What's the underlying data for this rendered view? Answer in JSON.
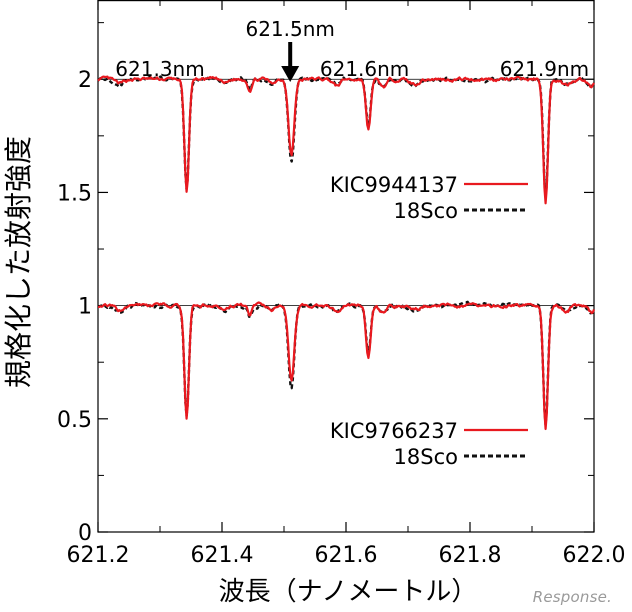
{
  "chart_data": {
    "type": "line",
    "title": "",
    "xlabel": "波長（ナノメートル）",
    "ylabel": "規格化した放射強度",
    "xlim": [
      621.2,
      622.0
    ],
    "ylim": [
      0,
      2.35
    ],
    "xticks": [
      621.2,
      621.4,
      621.6,
      621.8,
      622.0
    ],
    "xtick_labels": [
      "621.2",
      "621.4",
      "621.6",
      "621.8",
      "622.0"
    ],
    "yticks": [
      0,
      0.5,
      1,
      1.5,
      2
    ],
    "ytick_labels": [
      "0",
      "0.5",
      "1",
      "1.5",
      "2"
    ],
    "reference_lines": [
      1,
      2
    ],
    "line_annotations": [
      {
        "label": "621.3nm",
        "x": 621.3
      },
      {
        "label": "621.5nm",
        "x": 621.51,
        "arrow": true
      },
      {
        "label": "621.6nm",
        "x": 621.63
      },
      {
        "label": "621.9nm",
        "x": 621.92
      }
    ],
    "absorption_lines": [
      {
        "center": 621.343,
        "width": 0.0052,
        "red_min": 1.5,
        "black_min": 1.52
      },
      {
        "center": 621.512,
        "width": 0.0065,
        "red_min": 1.67,
        "black_min": 1.63
      },
      {
        "center": 621.636,
        "width": 0.0052,
        "red_min": 1.77,
        "black_min": 1.79
      },
      {
        "center": 621.922,
        "width": 0.0052,
        "red_min": 1.45,
        "black_min": 1.47
      }
    ],
    "series_groups": [
      {
        "offset": 1,
        "series": [
          {
            "name": "KIC9944137",
            "color": "#e8191f",
            "style": "solid"
          },
          {
            "name": "18Sco",
            "color": "#111111",
            "style": "dashed"
          }
        ]
      },
      {
        "offset": 0,
        "series": [
          {
            "name": "KIC9766237",
            "color": "#e8191f",
            "style": "solid"
          },
          {
            "name": "18Sco",
            "color": "#111111",
            "style": "dashed"
          }
        ]
      }
    ]
  },
  "watermark": "Response."
}
